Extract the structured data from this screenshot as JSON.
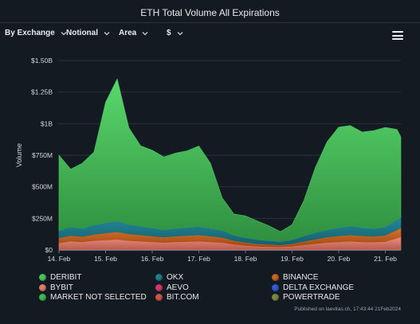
{
  "header": {
    "title": "ETH Total Volume All Expirations"
  },
  "toolbar": {
    "group_by": "By Exchange",
    "metric": "Notional",
    "chart_kind": "Area",
    "currency": "$"
  },
  "footer": {
    "published": "Published on laevitas.ch, 17:43:44 21Feb2024"
  },
  "colors": {
    "background": "#141a22",
    "deribit": "#49c75d",
    "okx": "#1d7f8c",
    "binance": "#c8641c",
    "bybit": "#e07a6a",
    "aevo": "#d63a6a",
    "delta_exchange": "#2f5fd6",
    "market_not_selected": "#3dba55",
    "bit_com": "#cf5548",
    "powertrade": "#7d8a3c"
  },
  "chart_data": {
    "type": "area",
    "stacked": true,
    "ylabel": "Volume",
    "ylim": [
      0,
      1500000000
    ],
    "yticks": [
      0,
      250000000,
      500000000,
      750000000,
      1000000000,
      1250000000,
      1500000000
    ],
    "ytick_labels": [
      "$0",
      "$250M",
      "$500M",
      "$750M",
      "$1B",
      "$1.25B",
      "$1.50B"
    ],
    "xlim": [
      "2024-02-14T00:00",
      "2024-02-21T08:00"
    ],
    "xticks": [
      "2024-02-14",
      "2024-02-15",
      "2024-02-16",
      "2024-02-17",
      "2024-02-18",
      "2024-02-19",
      "2024-02-20",
      "2024-02-21"
    ],
    "xtick_labels": [
      "14. Feb",
      "15. Feb",
      "16. Feb",
      "17. Feb",
      "18. Feb",
      "19. Feb",
      "20. Feb",
      "21. Feb"
    ],
    "grid": true,
    "legend_position": "bottom",
    "x": [
      "2024-02-14T00:00",
      "2024-02-14T06:00",
      "2024-02-14T12:00",
      "2024-02-14T18:00",
      "2024-02-15T00:00",
      "2024-02-15T06:00",
      "2024-02-15T12:00",
      "2024-02-15T18:00",
      "2024-02-16T00:00",
      "2024-02-16T06:00",
      "2024-02-16T12:00",
      "2024-02-16T18:00",
      "2024-02-17T00:00",
      "2024-02-17T06:00",
      "2024-02-17T12:00",
      "2024-02-17T18:00",
      "2024-02-18T00:00",
      "2024-02-18T06:00",
      "2024-02-18T12:00",
      "2024-02-18T18:00",
      "2024-02-19T00:00",
      "2024-02-19T06:00",
      "2024-02-19T12:00",
      "2024-02-19T18:00",
      "2024-02-20T00:00",
      "2024-02-20T06:00",
      "2024-02-20T12:00",
      "2024-02-20T18:00",
      "2024-02-21T00:00",
      "2024-02-21T06:00",
      "2024-02-21T08:00"
    ],
    "series": [
      {
        "name": "BYBIT",
        "color_key": "bybit",
        "values": [
          50000000,
          65000000,
          60000000,
          70000000,
          75000000,
          80000000,
          70000000,
          65000000,
          60000000,
          55000000,
          60000000,
          62000000,
          65000000,
          60000000,
          55000000,
          40000000,
          30000000,
          25000000,
          22000000,
          20000000,
          25000000,
          35000000,
          45000000,
          55000000,
          60000000,
          65000000,
          60000000,
          58000000,
          62000000,
          90000000,
          100000000
        ]
      },
      {
        "name": "BINANCE",
        "color_key": "binance",
        "values": [
          40000000,
          45000000,
          42000000,
          50000000,
          55000000,
          60000000,
          52000000,
          50000000,
          45000000,
          42000000,
          45000000,
          48000000,
          50000000,
          45000000,
          40000000,
          30000000,
          25000000,
          20000000,
          18000000,
          15000000,
          20000000,
          28000000,
          35000000,
          42000000,
          48000000,
          50000000,
          48000000,
          45000000,
          50000000,
          65000000,
          70000000
        ]
      },
      {
        "name": "OKX",
        "color_key": "okx",
        "values": [
          60000000,
          70000000,
          65000000,
          75000000,
          80000000,
          85000000,
          75000000,
          70000000,
          65000000,
          60000000,
          62000000,
          65000000,
          68000000,
          62000000,
          58000000,
          45000000,
          40000000,
          35000000,
          32000000,
          30000000,
          35000000,
          45000000,
          55000000,
          60000000,
          65000000,
          70000000,
          66000000,
          62000000,
          68000000,
          80000000,
          85000000
        ]
      },
      {
        "name": "DERIBIT",
        "color_key": "deribit",
        "values": [
          600000000,
          460000000,
          520000000,
          580000000,
          960000000,
          1130000000,
          770000000,
          640000000,
          620000000,
          580000000,
          600000000,
          610000000,
          640000000,
          520000000,
          260000000,
          170000000,
          175000000,
          150000000,
          120000000,
          80000000,
          120000000,
          280000000,
          520000000,
          700000000,
          800000000,
          800000000,
          760000000,
          780000000,
          790000000,
          720000000,
          640000000
        ]
      }
    ],
    "legend": [
      {
        "name": "DERIBIT",
        "color_key": "deribit"
      },
      {
        "name": "OKX",
        "color_key": "okx"
      },
      {
        "name": "BINANCE",
        "color_key": "binance"
      },
      {
        "name": "BYBIT",
        "color_key": "bybit"
      },
      {
        "name": "AEVO",
        "color_key": "aevo"
      },
      {
        "name": "DELTA EXCHANGE",
        "color_key": "delta_exchange"
      },
      {
        "name": "MARKET NOT SELECTED",
        "color_key": "market_not_selected"
      },
      {
        "name": "BIT.COM",
        "color_key": "bit_com"
      },
      {
        "name": "POWERTRADE",
        "color_key": "powertrade"
      }
    ]
  }
}
